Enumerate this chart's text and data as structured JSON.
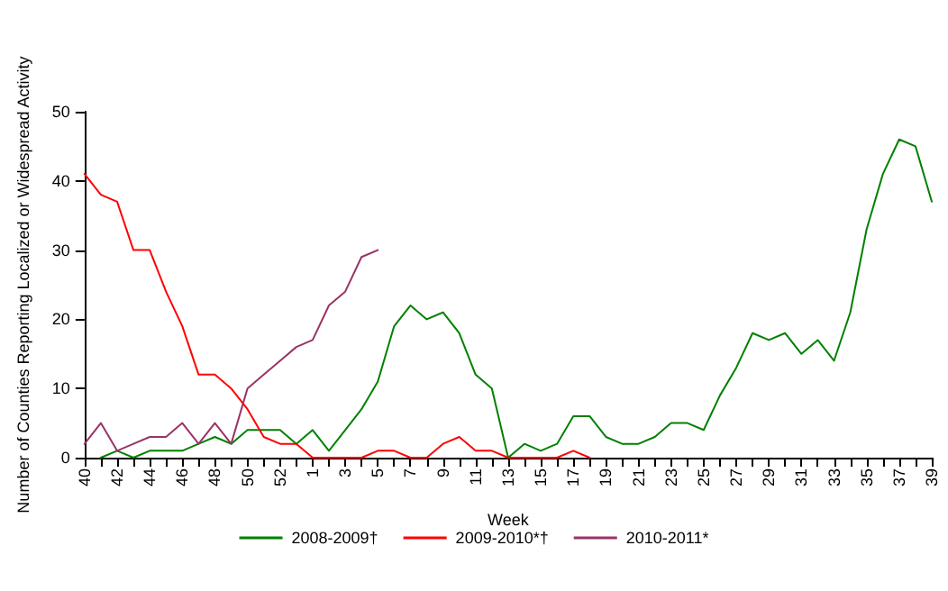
{
  "chart_data": {
    "type": "line",
    "xlabel": "Week",
    "ylabel": "Number of Counties Reporting Localized or Widespread Activity",
    "categories": [
      "40",
      null,
      "42",
      null,
      "44",
      null,
      "46",
      null,
      "48",
      null,
      "50",
      null,
      "52",
      null,
      "1",
      null,
      "3",
      null,
      "5",
      null,
      "7",
      null,
      "9",
      null,
      "11",
      null,
      "13",
      null,
      "15",
      null,
      "17",
      null,
      "19",
      null,
      "21",
      null,
      "23",
      null,
      "25",
      null,
      "27",
      null,
      "29",
      null,
      "31",
      null,
      "33",
      null,
      "35",
      null,
      "37",
      null,
      "39"
    ],
    "series": [
      {
        "name": "2008-2009†",
        "color": "#008000",
        "values": [
          null,
          0,
          1,
          0,
          1,
          1,
          1,
          2,
          3,
          2,
          4,
          4,
          4,
          2,
          4,
          1,
          4,
          7,
          11,
          19,
          22,
          20,
          21,
          18,
          12,
          10,
          0,
          2,
          1,
          2,
          6,
          6,
          3,
          2,
          2,
          3,
          5,
          5,
          4,
          9,
          13,
          18,
          17,
          18,
          15,
          17,
          14,
          21,
          33,
          41,
          46,
          45,
          37
        ]
      },
      {
        "name": "2009-2010*†",
        "color": "#ff0000",
        "values": [
          41,
          38,
          37,
          30,
          30,
          24,
          19,
          12,
          12,
          10,
          7,
          3,
          2,
          2,
          0,
          0,
          0,
          0,
          1,
          1,
          0,
          0,
          2,
          3,
          1,
          1,
          0,
          0,
          0,
          0,
          1,
          0,
          null,
          null,
          null,
          null,
          null,
          null,
          null,
          null,
          null,
          null,
          null,
          null,
          null,
          null,
          null,
          null,
          null,
          null,
          null,
          null,
          null
        ]
      },
      {
        "name": "2010-2011*",
        "color": "#993366",
        "values": [
          2,
          5,
          1,
          2,
          3,
          3,
          5,
          2,
          5,
          2,
          10,
          12,
          14,
          16,
          17,
          22,
          24,
          29,
          30,
          null,
          null,
          null,
          null,
          null,
          null,
          null,
          null,
          null,
          null,
          null,
          null,
          null,
          null,
          null,
          null,
          null,
          null,
          null,
          null,
          null,
          null,
          null,
          null,
          null,
          null,
          null,
          null,
          null,
          null,
          null,
          null,
          null,
          null
        ]
      }
    ],
    "ylim": [
      0,
      50
    ],
    "yticks": [
      0,
      10,
      20,
      30,
      40,
      50
    ],
    "grid": false,
    "legend": "bottom",
    "marker": "none",
    "line_style": "solid"
  }
}
